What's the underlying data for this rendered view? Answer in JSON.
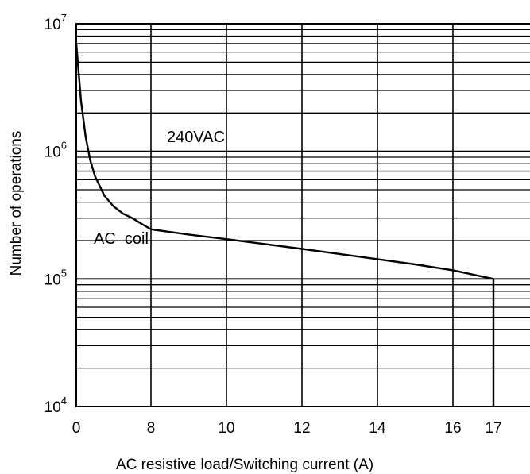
{
  "chart_data": {
    "type": "line",
    "title": "",
    "xlabel": "AC resistive load/Switching current (A)",
    "ylabel": "Number of operations",
    "y_scale": "log",
    "ylim": [
      10000,
      10000000
    ],
    "x_ticks": [
      "0",
      "8",
      "10",
      "12",
      "14",
      "16",
      "17"
    ],
    "y_ticks": [
      {
        "base": "10",
        "exp": "4"
      },
      {
        "base": "10",
        "exp": "5"
      },
      {
        "base": "10",
        "exp": "6"
      },
      {
        "base": "10",
        "exp": "7"
      }
    ],
    "grid": true,
    "annotations": [
      "240VAC",
      "AC  coil"
    ],
    "series": [
      {
        "x": [
          0,
          0.5,
          1,
          1.5,
          2,
          3,
          4,
          5,
          6,
          7,
          8,
          9,
          10,
          11,
          12,
          13,
          14,
          15,
          16,
          17
        ],
        "y": [
          7000000,
          2500000,
          1300000,
          850000,
          640000,
          450000,
          370000,
          325000,
          300000,
          270000,
          245000,
          223000,
          205000,
          188000,
          172000,
          157000,
          143000,
          130000,
          117000,
          100000
        ]
      }
    ]
  }
}
